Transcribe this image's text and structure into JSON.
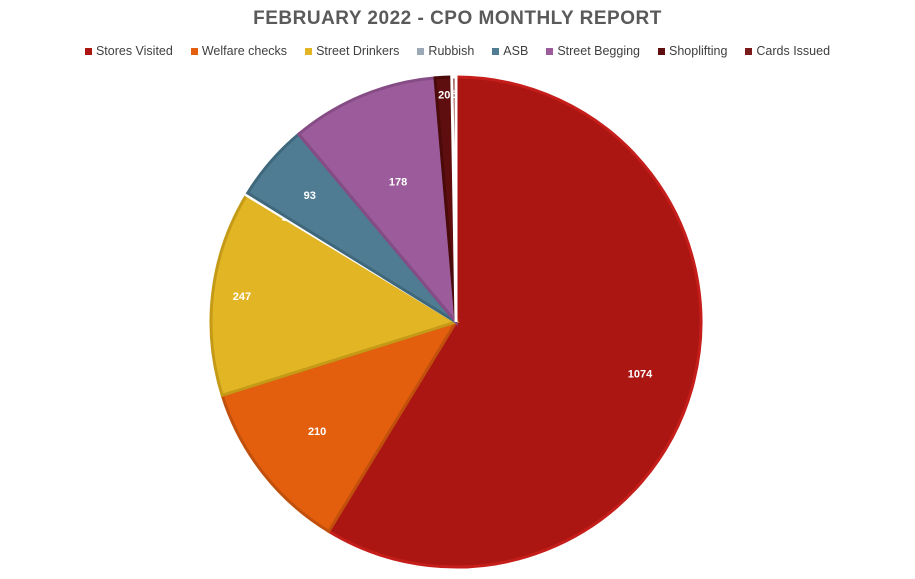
{
  "chart_data": {
    "type": "pie",
    "title": "FEBRUARY 2022 - CPO MONTHLY REPORT",
    "legend_position": "top",
    "series": [
      {
        "name": "Stores Visited",
        "value": 1074,
        "color": "#ab1612",
        "border": "#c51e1a"
      },
      {
        "name": "Welfare checks",
        "value": 210,
        "color": "#e35f0e",
        "border": "#c0500c"
      },
      {
        "name": "Street Drinkers",
        "value": 247,
        "color": "#e2b524",
        "border": "#c49a17"
      },
      {
        "name": "Rubbish",
        "value": 3,
        "color": "#9aa9b5",
        "border": "#ffffff"
      },
      {
        "name": "ASB",
        "value": 93,
        "color": "#4f7c93",
        "border": "#3f687c"
      },
      {
        "name": "Street Begging",
        "value": 178,
        "color": "#9c5c9b",
        "border": "#864c85"
      },
      {
        "name": "Shoplifting",
        "value": 20,
        "color": "#5e0e0e",
        "border": "#4a0a0a"
      },
      {
        "name": "Cards Issued",
        "value": 5,
        "color": "#7a1a1a",
        "border": "#ffffff"
      }
    ]
  }
}
